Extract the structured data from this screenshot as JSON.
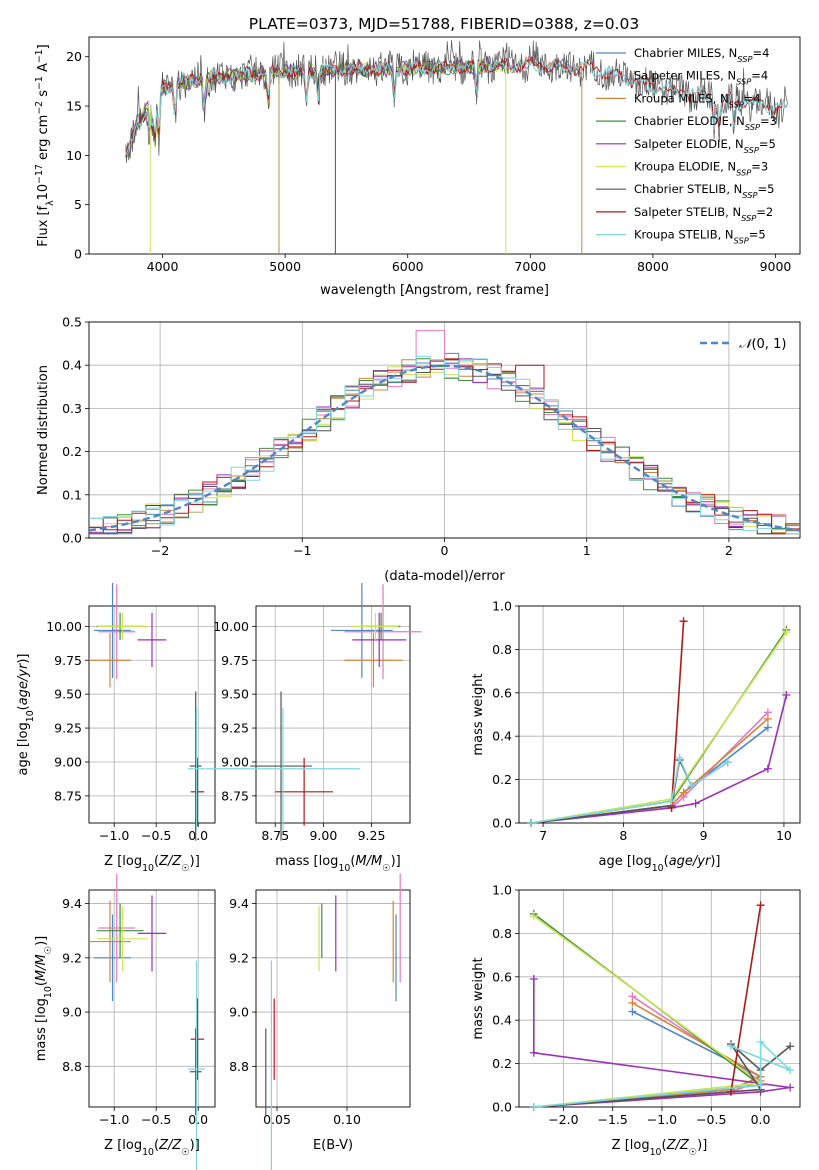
{
  "title": "PLATE=0373, MJD=51788, FIBERID=0388, z=0.03",
  "colors": {
    "chabrier_miles": "#4f86c6",
    "salpeter_miles": "#e977c1",
    "kroupa_miles": "#d4843c",
    "chabrier_elodie": "#3f8f3f",
    "salpeter_elodie": "#9b2fb8",
    "kroupa_elodie": "#c9e652",
    "chabrier_stelib": "#555555",
    "salpeter_stelib": "#b01818",
    "kroupa_stelib": "#7fd7de",
    "normal_dashed": "#4f86c6"
  },
  "legend": [
    {
      "key": "chabrier_miles",
      "label": "Chabrier MILES, N",
      "sub": "SSP",
      "tail": "=4"
    },
    {
      "key": "salpeter_miles",
      "label": "Salpeter MILES, N",
      "sub": "SSP",
      "tail": "=4"
    },
    {
      "key": "kroupa_miles",
      "label": "Kroupa MILES, N",
      "sub": "SSP",
      "tail": "=4"
    },
    {
      "key": "chabrier_elodie",
      "label": "Chabrier ELODIE, N",
      "sub": "SSP",
      "tail": "=3"
    },
    {
      "key": "salpeter_elodie",
      "label": "Salpeter ELODIE, N",
      "sub": "SSP",
      "tail": "=5"
    },
    {
      "key": "kroupa_elodie",
      "label": "Kroupa ELODIE, N",
      "sub": "SSP",
      "tail": "=3"
    },
    {
      "key": "chabrier_stelib",
      "label": "Chabrier STELIB, N",
      "sub": "SSP",
      "tail": "=5"
    },
    {
      "key": "salpeter_stelib",
      "label": "Salpeter STELIB, N",
      "sub": "SSP",
      "tail": "=2"
    },
    {
      "key": "kroupa_stelib",
      "label": "Kroupa STELIB, N",
      "sub": "SSP",
      "tail": "=5"
    }
  ],
  "chart_data": [
    {
      "id": "spectrum",
      "type": "line",
      "xlabel": "wavelength [Angstrom, rest frame]",
      "ylabel": "Flux [f_λ 10^-17 erg cm^-2 s^-1 A^-1]",
      "xlim": [
        3400,
        9200
      ],
      "ylim": [
        0,
        22
      ],
      "xticks": [
        4000,
        5000,
        6000,
        7000,
        8000,
        9000
      ],
      "yticks": [
        0,
        5,
        10,
        15,
        20
      ],
      "grid": false,
      "legend_position": "top-right",
      "series_keys": [
        "chabrier_miles",
        "salpeter_miles",
        "kroupa_miles",
        "chabrier_elodie",
        "salpeter_elodie",
        "kroupa_elodie",
        "chabrier_stelib",
        "salpeter_stelib",
        "kroupa_stelib"
      ],
      "continuum": [
        [
          3700,
          10.0
        ],
        [
          3750,
          11.5
        ],
        [
          3800,
          13.5
        ],
        [
          3900,
          15.0
        ],
        [
          4000,
          16.8
        ],
        [
          4200,
          17.5
        ],
        [
          4500,
          18.0
        ],
        [
          5000,
          18.5
        ],
        [
          5500,
          18.7
        ],
        [
          6000,
          18.8
        ],
        [
          6500,
          19.0
        ],
        [
          7000,
          19.2
        ],
        [
          7500,
          18.8
        ],
        [
          8000,
          17.0
        ],
        [
          8500,
          15.8
        ],
        [
          9000,
          15.0
        ],
        [
          9100,
          14.8
        ]
      ],
      "miles_range": [
        3700,
        7420
      ],
      "elodie_range": [
        3700,
        6800
      ],
      "dips": [
        {
          "series": "kroupa_elodie",
          "x": 3900,
          "y": 0
        },
        {
          "series": "kroupa_miles",
          "x": 4950,
          "y": 0
        },
        {
          "series": "chabrier_stelib",
          "x": 5410,
          "y": 0
        },
        {
          "series": "kroupa_elodie",
          "x": 6800,
          "y": 0
        },
        {
          "series": "kroupa_miles",
          "x": 7420,
          "y": 0
        }
      ]
    },
    {
      "id": "residuals",
      "type": "histogram",
      "xlabel": "(data-model)/error",
      "ylabel": "Normed distribution",
      "xlim": [
        -2.5,
        2.5
      ],
      "ylim": [
        0,
        0.5
      ],
      "xticks": [
        -2,
        -1,
        0,
        1,
        2
      ],
      "yticks": [
        0.0,
        0.1,
        0.2,
        0.3,
        0.4,
        0.5
      ],
      "grid": true,
      "legend": "N(0,1)",
      "legend_position": "top-right",
      "bin_width": 0.1
    },
    {
      "id": "age_vs_Z",
      "type": "scatter",
      "xlabel": "Z [log10(Z/Z☉)]",
      "ylabel": "age  [log10(age/yr)]",
      "xlim": [
        -1.3,
        0.2
      ],
      "ylim": [
        8.55,
        10.15
      ],
      "xticks": [
        -1.0,
        -0.5,
        0.0
      ],
      "yticks": [
        8.75,
        9.0,
        9.25,
        9.5,
        9.75,
        10.0
      ],
      "grid": true
    },
    {
      "id": "age_vs_mass",
      "type": "scatter",
      "xlabel": "mass [log10(M/M☉)]",
      "ylabel": "",
      "xlim": [
        8.65,
        9.45
      ],
      "ylim": [
        8.55,
        10.15
      ],
      "xticks": [
        8.75,
        9.0,
        9.25
      ],
      "yticks": [
        8.75,
        9.0,
        9.25,
        9.5,
        9.75,
        10.0
      ],
      "grid": true
    },
    {
      "id": "weight_vs_age",
      "type": "line",
      "xlabel": "age  [log10(age/yr)]",
      "ylabel": "mass weight",
      "xlim": [
        6.7,
        10.2
      ],
      "ylim": [
        0,
        1
      ],
      "xticks": [
        7,
        8,
        9,
        10
      ],
      "yticks": [
        0.0,
        0.2,
        0.4,
        0.6,
        0.8,
        1.0
      ],
      "grid": true
    },
    {
      "id": "mass_vs_Z",
      "type": "scatter",
      "xlabel": "Z [log10(Z/Z☉)]",
      "ylabel": "mass [log10(M/M☉)]",
      "xlim": [
        -1.3,
        0.2
      ],
      "ylim": [
        8.65,
        9.45
      ],
      "xticks": [
        -1.0,
        -0.5,
        0.0
      ],
      "yticks": [
        8.8,
        9.0,
        9.2,
        9.4
      ],
      "grid": true
    },
    {
      "id": "mass_vs_ebv",
      "type": "scatter",
      "xlabel": "E(B-V)",
      "ylabel": "",
      "xlim": [
        0.035,
        0.145
      ],
      "ylim": [
        8.65,
        9.45
      ],
      "xticks": [
        0.05,
        0.1
      ],
      "yticks": [
        8.8,
        9.0,
        9.2,
        9.4
      ],
      "grid": true
    },
    {
      "id": "weight_vs_Z",
      "type": "line",
      "xlabel": "Z [log10(Z/Z☉)]",
      "ylabel": "mass weight",
      "xlim": [
        -2.45,
        0.4
      ],
      "ylim": [
        0,
        1
      ],
      "xticks": [
        -2.0,
        -1.5,
        -1.0,
        -0.5,
        0.0
      ],
      "yticks": [
        0.0,
        0.2,
        0.4,
        0.6,
        0.8,
        1.0
      ],
      "grid": true
    }
  ],
  "models": [
    {
      "key": "chabrier_miles",
      "age": 9.97,
      "age_err": 0.35,
      "Z": -1.02,
      "Z_err": 0.22,
      "mass": 9.2,
      "mass_err": 0.16,
      "ebv": 0.135,
      "sfh": [
        [
          6.85,
          0.0,
          -2.3
        ],
        [
          8.6,
          0.08,
          -0.3
        ],
        [
          8.75,
          0.14,
          0.0
        ],
        [
          9.8,
          0.44,
          -1.3
        ]
      ]
    },
    {
      "key": "salpeter_miles",
      "age": 9.96,
      "age_err": 0.35,
      "Z": -0.97,
      "Z_err": 0.22,
      "mass": 9.31,
      "mass_err": 0.2,
      "ebv": 0.138,
      "sfh": [
        [
          6.85,
          0.0,
          -2.3
        ],
        [
          8.6,
          0.07,
          -0.3
        ],
        [
          8.75,
          0.12,
          0.0
        ],
        [
          9.8,
          0.51,
          -1.3
        ]
      ]
    },
    {
      "key": "kroupa_miles",
      "age": 9.75,
      "age_err": 0.2,
      "Z": -1.05,
      "Z_err": 0.25,
      "mass": 9.26,
      "mass_err": 0.15,
      "ebv": 0.133,
      "sfh": [
        [
          6.85,
          0.0,
          -2.3
        ],
        [
          8.6,
          0.08,
          -0.3
        ],
        [
          8.75,
          0.14,
          0.0
        ],
        [
          9.8,
          0.48,
          -1.3
        ]
      ]
    },
    {
      "key": "chabrier_elodie",
      "age": 10.0,
      "age_err": 0.1,
      "Z": -0.93,
      "Z_err": 0.28,
      "mass": 9.3,
      "mass_err": 0.1,
      "ebv": 0.082,
      "sfh": [
        [
          6.85,
          0.0,
          -2.3
        ],
        [
          8.6,
          0.1,
          0.0
        ],
        [
          10.03,
          0.89,
          -2.3
        ]
      ]
    },
    {
      "key": "salpeter_elodie",
      "age": 9.9,
      "age_err": 0.2,
      "Z": -0.55,
      "Z_err": 0.17,
      "mass": 9.29,
      "mass_err": 0.14,
      "ebv": 0.092,
      "sfh": [
        [
          6.85,
          0.0,
          -2.3
        ],
        [
          8.6,
          0.07,
          0.0
        ],
        [
          8.9,
          0.09,
          0.3
        ],
        [
          9.8,
          0.25,
          -2.3
        ],
        [
          10.03,
          0.59,
          -2.3
        ]
      ]
    },
    {
      "key": "kroupa_elodie",
      "age": 10.0,
      "age_err": 0.1,
      "Z": -0.9,
      "Z_err": 0.3,
      "mass": 9.27,
      "mass_err": 0.12,
      "ebv": 0.08,
      "sfh": [
        [
          6.85,
          0.0,
          -2.3
        ],
        [
          8.6,
          0.11,
          0.0
        ],
        [
          10.03,
          0.88,
          -2.3
        ]
      ]
    },
    {
      "key": "chabrier_stelib",
      "age": 8.97,
      "age_err": 0.55,
      "Z": -0.03,
      "Z_err": 0.07,
      "mass": 8.78,
      "mass_err": 0.16,
      "ebv": 0.042,
      "sfh": [
        [
          6.85,
          0.0,
          -2.3
        ],
        [
          8.6,
          0.08,
          0.0
        ],
        [
          8.7,
          0.29,
          -0.3
        ],
        [
          8.85,
          0.17,
          0.0
        ],
        [
          9.3,
          0.28,
          0.3
        ]
      ]
    },
    {
      "key": "salpeter_stelib",
      "age": 8.78,
      "age_err": 0.25,
      "Z": -0.01,
      "Z_err": 0.08,
      "mass": 8.9,
      "mass_err": 0.15,
      "ebv": 0.048,
      "sfh": [
        [
          8.6,
          0.07,
          -0.3
        ],
        [
          8.75,
          0.93,
          0.0
        ]
      ]
    },
    {
      "key": "kroupa_stelib",
      "age": 8.95,
      "age_err": 0.45,
      "Z": -0.02,
      "Z_err": 0.1,
      "mass": 8.79,
      "mass_err": 0.4,
      "ebv": 0.046,
      "sfh": [
        [
          6.85,
          0.0,
          -2.3
        ],
        [
          8.6,
          0.1,
          0.0
        ],
        [
          8.7,
          0.3,
          0.0
        ],
        [
          8.85,
          0.17,
          0.3
        ],
        [
          9.3,
          0.28,
          -0.3
        ]
      ]
    }
  ]
}
